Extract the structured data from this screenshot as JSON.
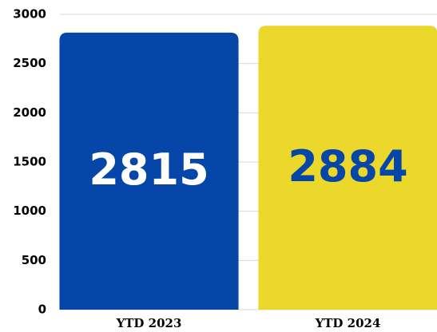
{
  "chart_data": {
    "type": "bar",
    "categories": [
      "YTD 2023",
      "YTD 2024"
    ],
    "values": [
      2815,
      2884
    ],
    "colors": [
      "#0646a8",
      "#ecd82b"
    ],
    "value_label_colors": [
      "#ffffff",
      "#0646a8"
    ],
    "ylim": [
      0,
      3000
    ],
    "yticks": [
      0,
      500,
      1000,
      1500,
      2000,
      2500,
      3000
    ],
    "grid": true
  }
}
